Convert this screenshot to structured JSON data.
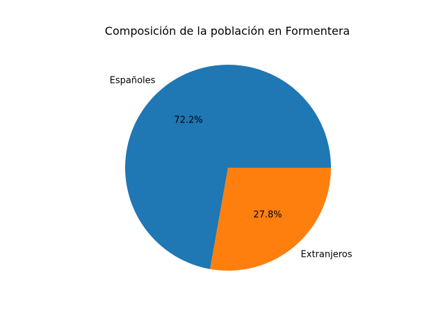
{
  "chart_data": {
    "type": "pie",
    "title": "Composición de la población en Formentera",
    "categories": [
      "Españoles",
      "Extranjeros"
    ],
    "values": [
      72.2,
      27.8
    ],
    "percent_labels": [
      "72.2%",
      "27.8%"
    ],
    "colors": [
      "#1f77b4",
      "#ff7f0e"
    ],
    "start_angle_deg": 0,
    "direction": "counterclockwise",
    "legend": "none"
  }
}
